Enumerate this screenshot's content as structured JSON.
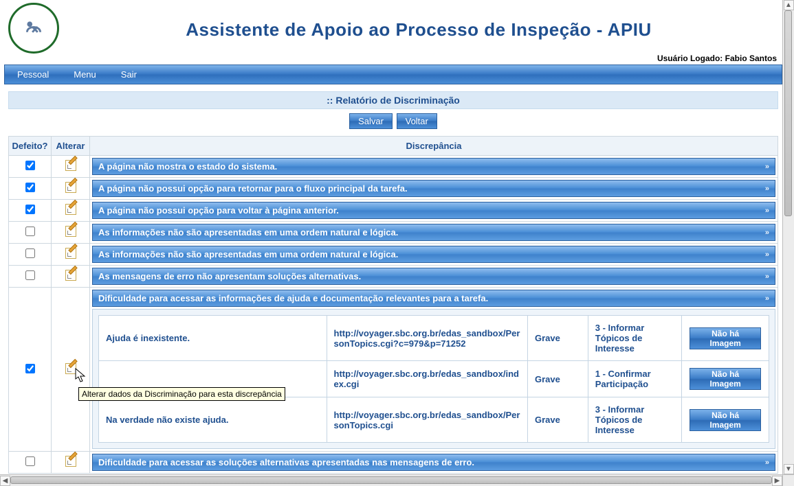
{
  "app": {
    "title": "Assistente de Apoio ao Processo de Inspeção - APIU",
    "user_label": "Usuário Logado:",
    "user_name": "Fabio Santos"
  },
  "menubar": {
    "items": [
      "Pessoal",
      "Menu",
      "Sair"
    ]
  },
  "section": {
    "title": ":: Relatório de Discriminação"
  },
  "buttons": {
    "save": "Salvar",
    "back": "Voltar",
    "no_image": "Não há Imagem"
  },
  "columns": {
    "defect": "Defeito?",
    "edit": "Alterar",
    "discrepancy": "Discrepância"
  },
  "tooltip": "Alterar dados da Discriminação para esta discrepância",
  "rows": [
    {
      "checked": true,
      "text": "A página não mostra o estado do sistema.",
      "expanded": false
    },
    {
      "checked": true,
      "text": "A página não possui opção para retornar para o fluxo principal da tarefa.",
      "expanded": false
    },
    {
      "checked": true,
      "text": "A página não possui opção para voltar à página anterior.",
      "expanded": false
    },
    {
      "checked": false,
      "text": "As informações não são apresentadas em uma ordem natural e lógica.",
      "expanded": false
    },
    {
      "checked": false,
      "text": "As informações não são apresentadas em uma ordem natural e lógica.",
      "expanded": false
    },
    {
      "checked": false,
      "text": "As mensagens de erro não apresentam soluções alternativas.",
      "expanded": false
    },
    {
      "checked": true,
      "text": "Dificuldade para acessar as informações de ajuda e documentação relevantes para a tarefa.",
      "expanded": true,
      "details": [
        {
          "desc": "Ajuda é inexistente.",
          "url": "http://voyager.sbc.org.br/edas_sandbox/PersonTopics.cgi?c=979&p=71252",
          "severity": "Grave",
          "step": "3 - Informar Tópicos de Interesse"
        },
        {
          "desc": "",
          "url": "http://voyager.sbc.org.br/edas_sandbox/index.cgi",
          "severity": "Grave",
          "step": "1 - Confirmar Participação"
        },
        {
          "desc": "Na verdade não existe ajuda.",
          "url": "http://voyager.sbc.org.br/edas_sandbox/PersonTopics.cgi",
          "severity": "Grave",
          "step": "3 - Informar Tópicos de Interesse"
        }
      ]
    },
    {
      "checked": false,
      "text": "Dificuldade para acessar as soluções alternativas apresentadas nas mensagens de erro.",
      "expanded": false
    }
  ],
  "styles": {
    "title_color": "#1f4f8f",
    "bar_gradient": [
      "#8fbdee",
      "#4b8fd7",
      "#3f82cc",
      "#5d9de0"
    ],
    "header_bg": "#edf3f9",
    "panel_bg": "#eef4fa",
    "link_color": "#1f4f8f"
  }
}
